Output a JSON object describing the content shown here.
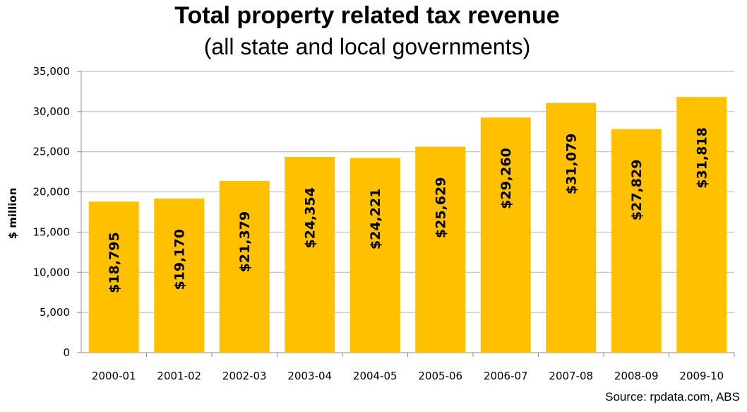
{
  "chart_data": {
    "type": "bar",
    "title": "Total property related tax revenue",
    "subtitle": "(all state and local governments)",
    "ylabel": "$ million",
    "xlabel": "",
    "categories": [
      "2000-01",
      "2001-02",
      "2002-03",
      "2003-04",
      "2004-05",
      "2005-06",
      "2006-07",
      "2007-08",
      "2008-09",
      "2009-10"
    ],
    "values": [
      18795,
      19170,
      21379,
      24354,
      24221,
      25629,
      29260,
      31079,
      27829,
      31818
    ],
    "data_labels": [
      "$18,795",
      "$19,170",
      "$21,379",
      "$24,354",
      "$24,221",
      "$25,629",
      "$29,260",
      "$31,079",
      "$27,829",
      "$31,818"
    ],
    "ylim": [
      0,
      35000
    ],
    "yticks": [
      0,
      5000,
      10000,
      15000,
      20000,
      25000,
      30000,
      35000
    ],
    "ytick_labels": [
      "0",
      "5,000",
      "10,000",
      "15,000",
      "20,000",
      "25,000",
      "30,000",
      "35,000"
    ],
    "grid": true,
    "bar_color": "#FFC000",
    "source": "Source: rpdata.com, ABS"
  }
}
